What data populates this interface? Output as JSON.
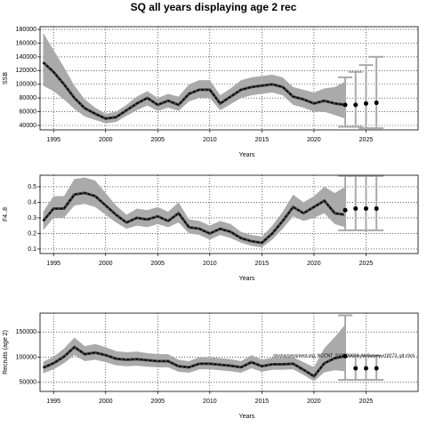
{
  "chart_data": [
    {
      "type": "line",
      "title": "SQ all years displaying age 2 rec",
      "x_label": "Years",
      "y_label": "SSB",
      "xlim": [
        1993.7,
        2030
      ],
      "xticks": [
        1995,
        2000,
        2005,
        2010,
        2015,
        2020,
        2025
      ],
      "ylim": [
        33500,
        184000
      ],
      "yticks": [
        40000,
        60000,
        80000,
        100000,
        120000,
        140000,
        160000,
        180000
      ],
      "grid": true,
      "x": [
        1994,
        1995,
        1996,
        1997,
        1998,
        1999,
        2000,
        2001,
        2002,
        2003,
        2004,
        2005,
        2006,
        2007,
        2008,
        2009,
        2010,
        2011,
        2012,
        2013,
        2014,
        2015,
        2016,
        2017,
        2018,
        2019,
        2020,
        2021,
        2022,
        2023
      ],
      "values": [
        132000,
        118000,
        100000,
        80000,
        65000,
        57000,
        50000,
        52000,
        62000,
        72000,
        80000,
        70000,
        76000,
        70000,
        86000,
        92000,
        92000,
        72000,
        82000,
        92000,
        96000,
        98000,
        100000,
        96000,
        82000,
        78000,
        72000,
        76000,
        72000,
        70000
      ],
      "lower": [
        98000,
        90000,
        78000,
        64000,
        53000,
        48000,
        43000,
        45000,
        54000,
        62000,
        69000,
        61000,
        66000,
        61000,
        75000,
        80000,
        80000,
        62000,
        71000,
        80000,
        84000,
        86000,
        88000,
        84000,
        70000,
        66000,
        60000,
        60000,
        55000,
        50000
      ],
      "upper": [
        175000,
        150000,
        125000,
        98000,
        78000,
        66000,
        57000,
        60000,
        70000,
        82000,
        90000,
        80000,
        86000,
        82000,
        100000,
        106000,
        106000,
        84000,
        94000,
        106000,
        110000,
        112000,
        114000,
        110000,
        96000,
        92000,
        88000,
        94000,
        96000,
        104000
      ],
      "proj_x": [
        2023,
        2024,
        2025,
        2026
      ],
      "proj_values": [
        70000,
        70000,
        72000,
        73000
      ],
      "proj_lower": [
        38000,
        38000,
        36000,
        36000
      ],
      "proj_upper": [
        110000,
        118000,
        128000,
        140000
      ]
    },
    {
      "type": "line",
      "x_label": "Years",
      "y_label": "F4..8",
      "xlim": [
        1993.7,
        2030
      ],
      "xticks": [
        1995,
        2000,
        2005,
        2010,
        2015,
        2020,
        2025
      ],
      "ylim": [
        0.071,
        0.574
      ],
      "yticks": [
        0.1,
        0.2,
        0.3,
        0.4,
        0.5
      ],
      "grid": true,
      "x": [
        1994,
        1995,
        1996,
        1997,
        1998,
        1999,
        2000,
        2001,
        2002,
        2003,
        2004,
        2005,
        2006,
        2007,
        2008,
        2009,
        2010,
        2011,
        2012,
        2013,
        2014,
        2015,
        2016,
        2017,
        2018,
        2019,
        2020,
        2021,
        2022,
        2023
      ],
      "values": [
        0.28,
        0.36,
        0.36,
        0.45,
        0.46,
        0.44,
        0.38,
        0.32,
        0.27,
        0.3,
        0.29,
        0.31,
        0.28,
        0.33,
        0.24,
        0.23,
        0.2,
        0.23,
        0.21,
        0.17,
        0.15,
        0.14,
        0.2,
        0.28,
        0.37,
        0.33,
        0.37,
        0.41,
        0.33,
        0.32
      ],
      "lower": [
        0.22,
        0.3,
        0.3,
        0.38,
        0.39,
        0.37,
        0.32,
        0.27,
        0.23,
        0.25,
        0.24,
        0.26,
        0.24,
        0.27,
        0.2,
        0.19,
        0.16,
        0.19,
        0.17,
        0.14,
        0.12,
        0.11,
        0.16,
        0.23,
        0.31,
        0.28,
        0.3,
        0.33,
        0.26,
        0.24
      ],
      "upper": [
        0.34,
        0.44,
        0.44,
        0.55,
        0.56,
        0.54,
        0.46,
        0.38,
        0.32,
        0.36,
        0.35,
        0.37,
        0.34,
        0.4,
        0.29,
        0.28,
        0.25,
        0.28,
        0.26,
        0.21,
        0.19,
        0.18,
        0.25,
        0.34,
        0.45,
        0.4,
        0.44,
        0.5,
        0.46,
        0.5
      ],
      "proj_x": [
        2023,
        2024,
        2025,
        2026
      ],
      "proj_values": [
        0.35,
        0.36,
        0.36,
        0.36
      ],
      "proj_lower": [
        0.22,
        0.22,
        0.22,
        0.22
      ],
      "proj_upper": [
        0.57,
        0.57,
        0.57,
        0.57
      ]
    },
    {
      "type": "line",
      "x_label": "Years",
      "y_label": "Recruits (age 2)",
      "annotation": "stockassessment.org, NCCNT_SYWO0024_NoSurvey, r18273, git:c9c6",
      "xlim": [
        1993.7,
        2030
      ],
      "xticks": [
        1995,
        2000,
        2005,
        2010,
        2015,
        2020,
        2025
      ],
      "ylim": [
        32000,
        187500
      ],
      "yticks": [
        50000,
        100000,
        150000
      ],
      "grid": true,
      "x": [
        1994,
        1995,
        1996,
        1997,
        1998,
        1999,
        2000,
        2001,
        2002,
        2003,
        2004,
        2005,
        2006,
        2007,
        2008,
        2009,
        2010,
        2011,
        2012,
        2013,
        2014,
        2015,
        2016,
        2017,
        2018,
        2019,
        2020,
        2021,
        2022,
        2023
      ],
      "values": [
        79000,
        88000,
        101000,
        120000,
        106000,
        109000,
        104000,
        97000,
        95000,
        96000,
        94000,
        92000,
        92000,
        82000,
        80000,
        87000,
        87000,
        85000,
        83000,
        80000,
        90000,
        82000,
        86000,
        86000,
        87000,
        75000,
        62000,
        88000,
        98000,
        102000
      ],
      "lower": [
        68000,
        76000,
        88000,
        104000,
        92000,
        95000,
        90000,
        84000,
        82000,
        83000,
        81000,
        80000,
        80000,
        71000,
        69000,
        76000,
        76000,
        74000,
        72000,
        69000,
        78000,
        71000,
        75000,
        75000,
        76000,
        65000,
        52000,
        70000,
        74000,
        72000
      ],
      "upper": [
        91000,
        101000,
        117000,
        139000,
        122000,
        126000,
        120000,
        112000,
        110000,
        111000,
        108000,
        106000,
        106000,
        95000,
        92000,
        100000,
        100000,
        98000,
        96000,
        92000,
        104000,
        95000,
        99000,
        99000,
        100000,
        90000,
        80000,
        118000,
        140000,
        165000
      ],
      "proj_x": [
        2023,
        2024,
        2025,
        2026
      ],
      "proj_values": [
        102000,
        78000,
        78000,
        78000
      ],
      "proj_lower": [
        55000,
        55000,
        55000,
        55000
      ],
      "proj_upper": [
        183000,
        103000,
        103000,
        103000
      ]
    }
  ]
}
